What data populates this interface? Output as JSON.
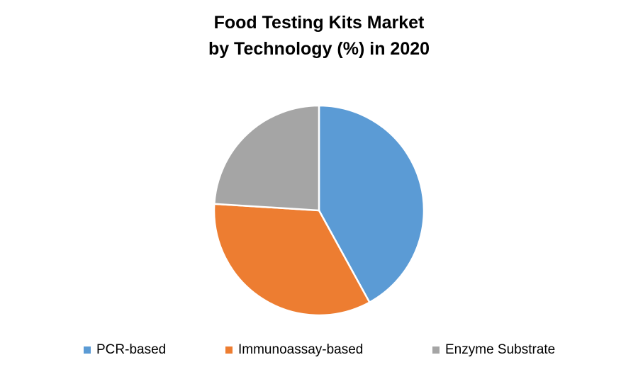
{
  "title": {
    "line1": "Food Testing Kits Market",
    "line2": "by Technology (%) in 2020"
  },
  "chart_data": {
    "type": "pie",
    "title": "Food Testing Kits Market by Technology (%) in 2020",
    "slices": [
      {
        "label": "PCR-based",
        "value": 42,
        "color": "#5B9BD5"
      },
      {
        "label": "Immunoassay-based",
        "value": 34,
        "color": "#ED7D31"
      },
      {
        "label": "Enzyme Substrate",
        "value": 24,
        "color": "#A5A5A5"
      }
    ],
    "start_angle_deg": 0,
    "clockwise": true,
    "slice_border_color": "#FFFFFF",
    "legend_position": "bottom",
    "background_color": "#FFFFFF",
    "title_color": "#000000",
    "legend_text_color": "#000000"
  }
}
